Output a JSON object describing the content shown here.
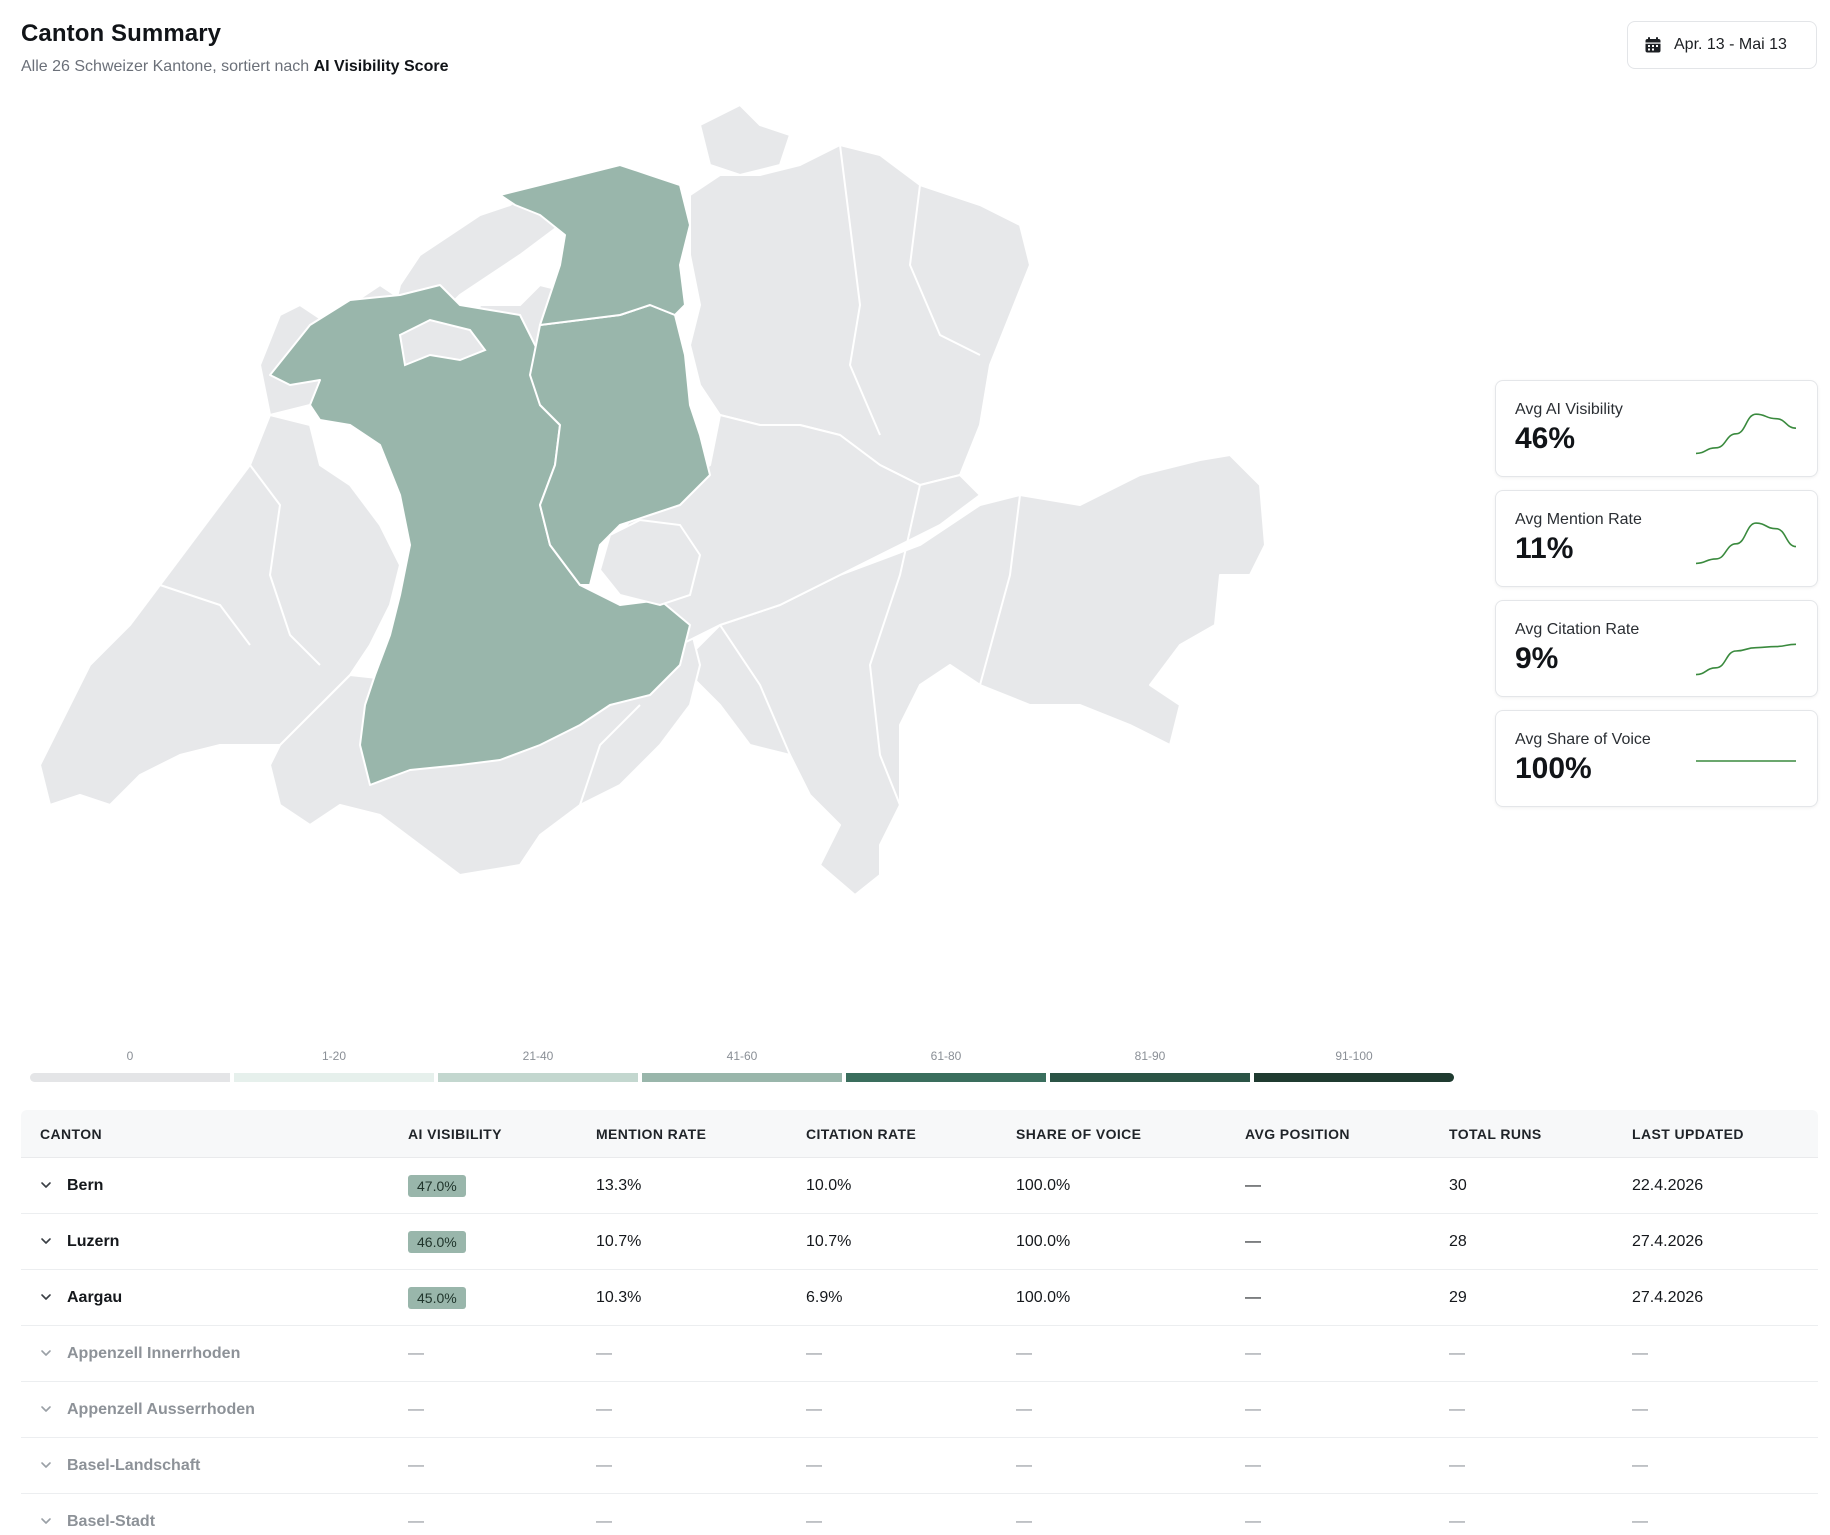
{
  "header": {
    "title": "Canton Summary",
    "subtitle_prefix": "Alle 26 Schweizer Kantone, sortiert nach",
    "subtitle_strong": "AI Visibility Score"
  },
  "date_range": {
    "label": "Apr. 13 - Mai 13",
    "icon": "calendar-icon"
  },
  "map": {
    "colors": {
      "inactive": "#e7e8ea",
      "active": "#99b6ab"
    },
    "highlighted_cantons": [
      "Bern",
      "Luzern",
      "Aargau"
    ]
  },
  "kpis": [
    {
      "label": "Avg AI Visibility",
      "value": "46%",
      "trend": [
        10,
        20,
        45,
        80,
        72,
        55
      ]
    },
    {
      "label": "Avg Mention Rate",
      "value": "11%",
      "trend": [
        10,
        18,
        45,
        82,
        72,
        40
      ]
    },
    {
      "label": "Avg Citation Rate",
      "value": "9%",
      "trend": [
        8,
        20,
        50,
        56,
        58,
        62
      ]
    },
    {
      "label": "Avg Share of Voice",
      "value": "100%",
      "trend": [
        50,
        50,
        50,
        50,
        50,
        50
      ]
    }
  ],
  "legend": [
    {
      "label": "0",
      "color": "#e4e5e7"
    },
    {
      "label": "1-20",
      "color": "#e6f0ec"
    },
    {
      "label": "21-40",
      "color": "#c3d7cf"
    },
    {
      "label": "41-60",
      "color": "#99b6ab"
    },
    {
      "label": "61-80",
      "color": "#3a6e5d"
    },
    {
      "label": "81-90",
      "color": "#2b5446"
    },
    {
      "label": "91-100",
      "color": "#1f3b30"
    }
  ],
  "table": {
    "columns": [
      "CANTON",
      "AI VISIBILITY",
      "MENTION RATE",
      "CITATION RATE",
      "SHARE OF VOICE",
      "AVG POSITION",
      "TOTAL RUNS",
      "LAST UPDATED"
    ],
    "rows": [
      {
        "canton": "Bern",
        "ai_visibility": "47.0%",
        "mention_rate": "13.3%",
        "citation_rate": "10.0%",
        "share_of_voice": "100.0%",
        "avg_position": "—",
        "total_runs": "30",
        "last_updated": "22.4.2026"
      },
      {
        "canton": "Luzern",
        "ai_visibility": "46.0%",
        "mention_rate": "10.7%",
        "citation_rate": "10.7%",
        "share_of_voice": "100.0%",
        "avg_position": "—",
        "total_runs": "28",
        "last_updated": "27.4.2026"
      },
      {
        "canton": "Aargau",
        "ai_visibility": "45.0%",
        "mention_rate": "10.3%",
        "citation_rate": "6.9%",
        "share_of_voice": "100.0%",
        "avg_position": "—",
        "total_runs": "29",
        "last_updated": "27.4.2026"
      },
      {
        "canton": "Appenzell Innerrhoden",
        "ai_visibility": "—",
        "mention_rate": "—",
        "citation_rate": "—",
        "share_of_voice": "—",
        "avg_position": "—",
        "total_runs": "—",
        "last_updated": "—"
      },
      {
        "canton": "Appenzell Ausserrhoden",
        "ai_visibility": "—",
        "mention_rate": "—",
        "citation_rate": "—",
        "share_of_voice": "—",
        "avg_position": "—",
        "total_runs": "—",
        "last_updated": "—"
      },
      {
        "canton": "Basel-Landschaft",
        "ai_visibility": "—",
        "mention_rate": "—",
        "citation_rate": "—",
        "share_of_voice": "—",
        "avg_position": "—",
        "total_runs": "—",
        "last_updated": "—"
      },
      {
        "canton": "Basel-Stadt",
        "ai_visibility": "—",
        "mention_rate": "—",
        "citation_rate": "—",
        "share_of_voice": "—",
        "avg_position": "—",
        "total_runs": "—",
        "last_updated": "—"
      }
    ]
  }
}
